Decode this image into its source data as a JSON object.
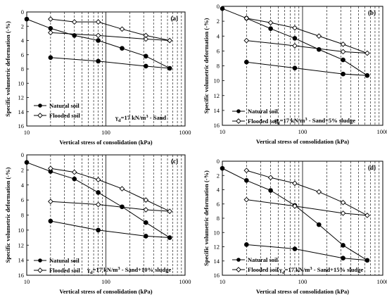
{
  "chart_data": [
    {
      "type": "line",
      "panel": "(a)",
      "xlabel": "Vertical stress of consolidation (kPa)",
      "ylabel": "Specific volumetric deformation (-%)",
      "xscale": "log",
      "xlim": [
        10,
        1000
      ],
      "ylim": [
        0,
        16
      ],
      "y_inverted": true,
      "xticks": [
        "10",
        "100",
        "1000"
      ],
      "yticks": [
        "0",
        "2",
        "4",
        "6",
        "8",
        "10",
        "12",
        "14",
        "16"
      ],
      "legend": {
        "position": "bottom-left",
        "entries": [
          "Natural soil",
          "Flooded soil"
        ]
      },
      "note": {
        "gamma": "γ",
        "sub": "d",
        "rest": "=17 kN/m",
        "sup": "3",
        "tail": " - Sand"
      },
      "series": [
        {
          "name": "Natural soil",
          "marker": "filled-circle",
          "x": [
            10,
            20,
            40,
            80,
            160,
            320,
            640,
            320,
            80,
            20
          ],
          "y": [
            1.0,
            2.3,
            3.3,
            4.0,
            5.1,
            6.2,
            7.9,
            7.6,
            6.9,
            6.4
          ]
        },
        {
          "name": "Flooded soil",
          "marker": "open-diamond",
          "x": [
            20,
            40,
            80,
            160,
            320,
            640,
            320,
            80,
            20
          ],
          "y": [
            1.0,
            1.4,
            1.4,
            2.4,
            3.3,
            4.0,
            3.8,
            3.3,
            2.9
          ]
        }
      ]
    },
    {
      "type": "line",
      "panel": "(b)",
      "xlabel": "Vertical stress of consolidation (kPa)",
      "ylabel": "Specific volumetric deformation (-%)",
      "xscale": "log",
      "xlim": [
        10,
        1000
      ],
      "ylim": [
        0,
        16
      ],
      "y_inverted": true,
      "xticks": [
        "10",
        "100",
        "1000"
      ],
      "yticks": [
        "0",
        "2",
        "4",
        "6",
        "8",
        "10",
        "12",
        "14",
        "16"
      ],
      "legend": {
        "position": "bottom-center",
        "entries": [
          "Natural soil",
          "Flooded soil"
        ]
      },
      "note": {
        "gamma": "γ",
        "sub": "d",
        "rest": "=17 kN/m",
        "sup": "3",
        "tail": " - Sand+5% sludge"
      },
      "series": [
        {
          "name": "Natural soil",
          "marker": "filled-circle",
          "x": [
            10,
            20,
            40,
            80,
            160,
            320,
            640,
            320,
            80,
            20
          ],
          "y": [
            0.3,
            1.6,
            3.0,
            4.3,
            5.8,
            7.2,
            9.3,
            9.1,
            8.3,
            7.5
          ]
        },
        {
          "name": "Flooded soil",
          "marker": "open-diamond",
          "x": [
            20,
            40,
            80,
            160,
            320,
            640,
            320,
            80,
            20
          ],
          "y": [
            1.6,
            2.2,
            2.9,
            4.0,
            5.1,
            6.3,
            6.1,
            5.3,
            4.6
          ]
        }
      ]
    },
    {
      "type": "line",
      "panel": "(c)",
      "xlabel": "Vertical stress of consolidation (kPa)",
      "ylabel": "Specific volumetric deformation (-%)",
      "xscale": "log",
      "xlim": [
        10,
        1000
      ],
      "ylim": [
        0,
        16
      ],
      "y_inverted": true,
      "xticks": [
        "10",
        "100",
        "1000"
      ],
      "yticks": [
        "0",
        "2",
        "4",
        "6",
        "8",
        "10",
        "12",
        "14",
        "16"
      ],
      "legend": {
        "position": "bottom-left",
        "entries": [
          "Natural soil",
          "Flooded soil"
        ]
      },
      "note": {
        "gamma": "γ",
        "sub": "d",
        "rest": "=17 kN/m",
        "sup": "3",
        "tail": " - Sand+10% sludge"
      },
      "series": [
        {
          "name": "Natural soil",
          "marker": "filled-circle",
          "x": [
            10,
            20,
            40,
            80,
            160,
            320,
            640,
            320,
            80,
            20
          ],
          "y": [
            1.0,
            2.2,
            3.2,
            5.0,
            6.9,
            9.0,
            11.0,
            10.8,
            10.0,
            8.8
          ]
        },
        {
          "name": "Flooded soil",
          "marker": "open-diamond",
          "x": [
            20,
            40,
            80,
            160,
            320,
            640,
            320,
            80,
            20
          ],
          "y": [
            1.8,
            2.3,
            3.3,
            4.5,
            6.0,
            7.5,
            7.3,
            6.6,
            6.2
          ]
        }
      ]
    },
    {
      "type": "line",
      "panel": "(d)",
      "xlabel": "Vertical stress of consolidation (kPa)",
      "ylabel": "Specific volumetric deformation (-%)",
      "xscale": "log",
      "xlim": [
        10,
        1000
      ],
      "ylim": [
        0,
        16
      ],
      "y_inverted": true,
      "xticks": [
        "10",
        "100",
        "1000"
      ],
      "yticks": [
        "0",
        "2",
        "4",
        "6",
        "8",
        "10",
        "12",
        "14",
        "16"
      ],
      "legend": {
        "position": "bottom-left",
        "entries": [
          "Natural soil",
          "Flooded soil"
        ]
      },
      "note": {
        "gamma": "γ",
        "sub": "d",
        "rest": "=17 kN/m",
        "sup": "3",
        "tail": " - Sand+15% sludge"
      },
      "series": [
        {
          "name": "Natural soil",
          "marker": "filled-circle",
          "x": [
            10,
            20,
            40,
            80,
            160,
            320,
            640,
            320,
            80,
            20
          ],
          "y": [
            1.0,
            2.7,
            4.1,
            6.2,
            8.9,
            11.8,
            13.9,
            13.6,
            12.3,
            11.7
          ]
        },
        {
          "name": "Flooded soil",
          "marker": "open-diamond",
          "x": [
            20,
            40,
            80,
            160,
            320,
            640,
            320,
            80,
            20
          ],
          "y": [
            1.3,
            2.3,
            3.1,
            4.3,
            5.8,
            7.6,
            7.3,
            6.3,
            5.4
          ]
        }
      ]
    }
  ]
}
